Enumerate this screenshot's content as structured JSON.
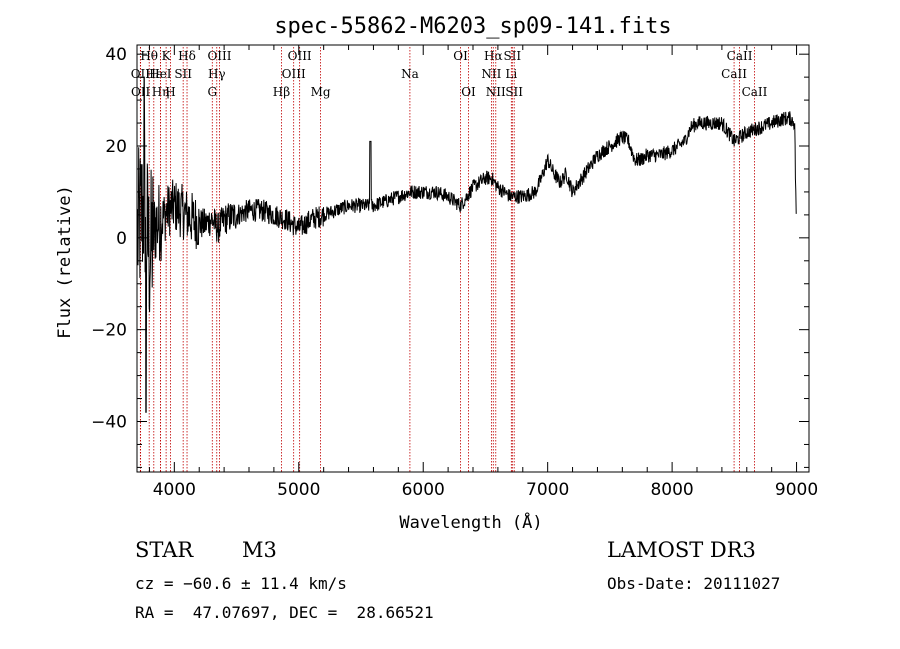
{
  "chart_data": {
    "type": "line",
    "title": "spec-55862-M6203_sp09-141.fits",
    "xlabel": "Wavelength (Å)",
    "ylabel": "Flux (relative)",
    "xlim": [
      3700,
      9100
    ],
    "ylim": [
      -51,
      42
    ],
    "xticks": [
      4000,
      5000,
      6000,
      7000,
      8000,
      9000
    ],
    "yticks": [
      -40,
      -20,
      0,
      20,
      40
    ],
    "series": [
      {
        "name": "spectrum",
        "anchors": [
          [
            3700,
            0
          ],
          [
            3760,
            8
          ],
          [
            3800,
            -4
          ],
          [
            3850,
            3
          ],
          [
            3900,
            4
          ],
          [
            3950,
            6
          ],
          [
            4000,
            7
          ],
          [
            4050,
            6
          ],
          [
            4100,
            5
          ],
          [
            4150,
            4
          ],
          [
            4200,
            3
          ],
          [
            4250,
            3
          ],
          [
            4300,
            4
          ],
          [
            4350,
            2
          ],
          [
            4400,
            4
          ],
          [
            4500,
            5
          ],
          [
            4600,
            6
          ],
          [
            4700,
            6
          ],
          [
            4800,
            5
          ],
          [
            4900,
            4
          ],
          [
            5000,
            2
          ],
          [
            5100,
            4
          ],
          [
            5200,
            5
          ],
          [
            5300,
            6
          ],
          [
            5400,
            7
          ],
          [
            5500,
            7
          ],
          [
            5600,
            7
          ],
          [
            5700,
            8
          ],
          [
            5800,
            9
          ],
          [
            5900,
            10
          ],
          [
            6000,
            10
          ],
          [
            6100,
            10
          ],
          [
            6200,
            9
          ],
          [
            6300,
            7
          ],
          [
            6400,
            11
          ],
          [
            6500,
            13
          ],
          [
            6550,
            13
          ],
          [
            6600,
            11
          ],
          [
            6700,
            9
          ],
          [
            6800,
            9
          ],
          [
            6900,
            10
          ],
          [
            6950,
            13
          ],
          [
            7000,
            17
          ],
          [
            7050,
            14
          ],
          [
            7100,
            12
          ],
          [
            7150,
            14
          ],
          [
            7200,
            10
          ],
          [
            7300,
            14
          ],
          [
            7400,
            18
          ],
          [
            7500,
            20
          ],
          [
            7600,
            22
          ],
          [
            7650,
            21
          ],
          [
            7700,
            17
          ],
          [
            7750,
            17
          ],
          [
            7800,
            18
          ],
          [
            7900,
            18
          ],
          [
            8000,
            19
          ],
          [
            8100,
            21
          ],
          [
            8150,
            24
          ],
          [
            8200,
            25
          ],
          [
            8300,
            25
          ],
          [
            8400,
            25
          ],
          [
            8450,
            23
          ],
          [
            8500,
            21
          ],
          [
            8550,
            22
          ],
          [
            8600,
            23
          ],
          [
            8700,
            24
          ],
          [
            8800,
            25
          ],
          [
            8900,
            26
          ],
          [
            8950,
            26
          ],
          [
            8985,
            25
          ],
          [
            8990,
            15
          ],
          [
            9000,
            2
          ]
        ]
      }
    ],
    "emission_lines": [
      {
        "label": "Hθ",
        "wavelength": 3798,
        "row": 1
      },
      {
        "label": "OII",
        "wavelength": 3727,
        "row": 2
      },
      {
        "label": "Hε",
        "wavelength": 3835,
        "row": 2
      },
      {
        "label": "OII",
        "wavelength": 3729,
        "row": 3
      },
      {
        "label": "Hη",
        "wavelength": 3889,
        "row": 3
      },
      {
        "label": "K",
        "wavelength": 3934,
        "row": 1
      },
      {
        "label": "HeI",
        "wavelength": 3888,
        "row": 2
      },
      {
        "label": "H",
        "wavelength": 3969,
        "row": 3
      },
      {
        "label": "Hδ",
        "wavelength": 4102,
        "row": 1
      },
      {
        "label": "SII",
        "wavelength": 4071,
        "row": 2
      },
      {
        "label": "OIII",
        "wavelength": 4363,
        "row": 1
      },
      {
        "label": "Hγ",
        "wavelength": 4341,
        "row": 2
      },
      {
        "label": "G",
        "wavelength": 4305,
        "row": 3
      },
      {
        "label": "OIII",
        "wavelength": 5007,
        "row": 1
      },
      {
        "label": "OIII",
        "wavelength": 4959,
        "row": 2
      },
      {
        "label": "Hβ",
        "wavelength": 4861,
        "row": 3
      },
      {
        "label": "Mg",
        "wavelength": 5175,
        "row": 3
      },
      {
        "label": "Na",
        "wavelength": 5893,
        "row": 2
      },
      {
        "label": "OI",
        "wavelength": 6300,
        "row": 1
      },
      {
        "label": "OI",
        "wavelength": 6364,
        "row": 3
      },
      {
        "label": "Hα",
        "wavelength": 6563,
        "row": 1
      },
      {
        "label": "SII",
        "wavelength": 6716,
        "row": 1
      },
      {
        "label": "NII",
        "wavelength": 6548,
        "row": 2
      },
      {
        "label": "Li",
        "wavelength": 6708,
        "row": 2
      },
      {
        "label": "NII",
        "wavelength": 6583,
        "row": 3
      },
      {
        "label": "SII",
        "wavelength": 6731,
        "row": 3
      },
      {
        "label": "CaII",
        "wavelength": 8542,
        "row": 1
      },
      {
        "label": "CaII",
        "wavelength": 8498,
        "row": 2
      },
      {
        "label": "CaII",
        "wavelength": 8662,
        "row": 3
      }
    ],
    "colors": {
      "spectrum": "#000000",
      "lines": "#c00000",
      "axes": "#000000"
    }
  },
  "info": {
    "class": "STAR",
    "subclass": "M3",
    "survey": "LAMOST DR3",
    "cz": "cz = −60.6 ± 11.4 km/s",
    "obs_date": "Obs-Date: 20111027",
    "radec": "RA =  47.07697, DEC =  28.66521"
  }
}
